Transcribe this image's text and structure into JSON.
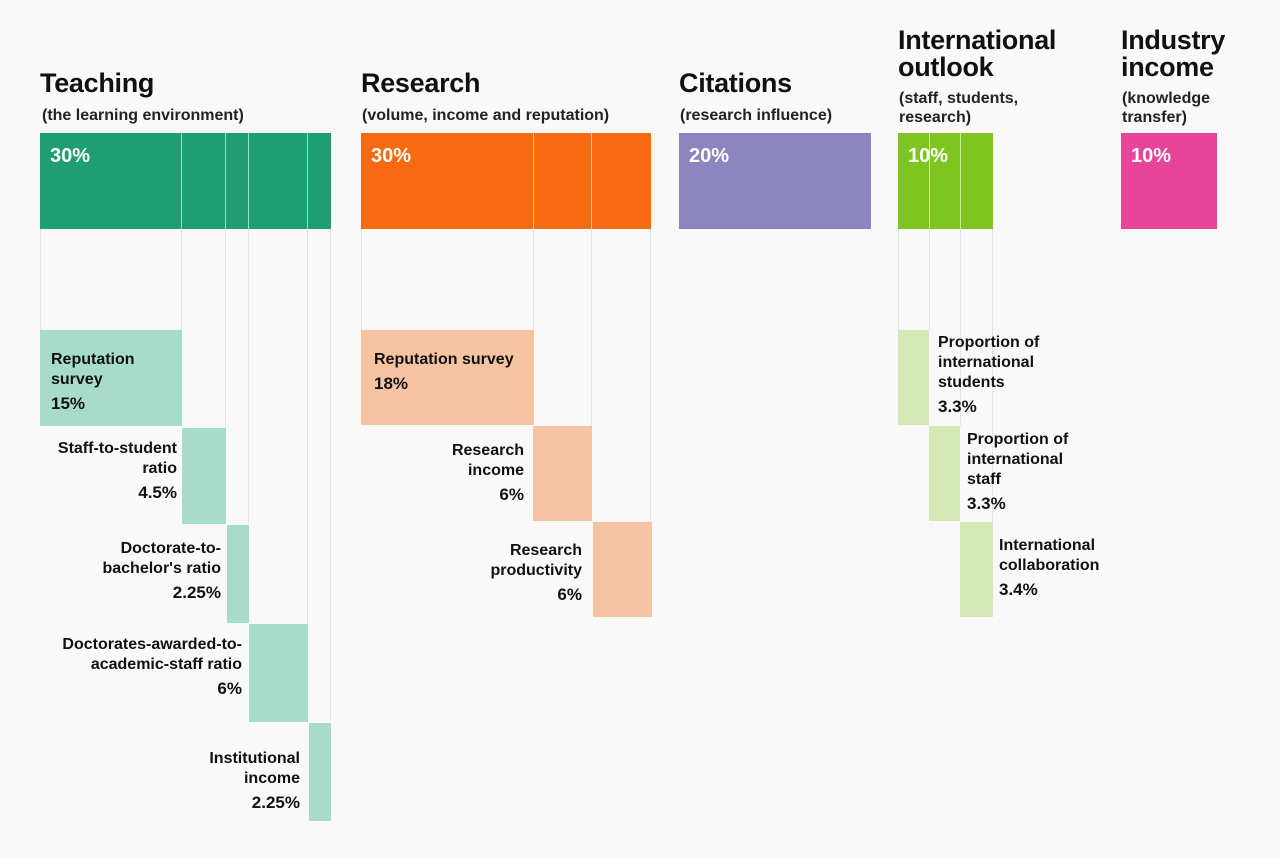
{
  "chart_data": {
    "type": "bar",
    "title": "",
    "unit": "%",
    "pillars": [
      {
        "name": "Teaching",
        "subtitle": "(the learning environment)",
        "weight": 30,
        "weight_label": "30%",
        "color": "#1f9e74",
        "light_color": "#a7dccb",
        "components": [
          {
            "label": "Reputation survey",
            "value": 15,
            "value_label": "15%"
          },
          {
            "label": "Staff-to-student ratio",
            "value": 4.5,
            "value_label": "4.5%"
          },
          {
            "label": "Doctorate-to-bachelor's ratio",
            "value": 2.25,
            "value_label": "2.25%"
          },
          {
            "label": "Doctorates-awarded-to-academic-staff ratio",
            "value": 6,
            "value_label": "6%"
          },
          {
            "label": "Institutional income",
            "value": 2.25,
            "value_label": "2.25%"
          }
        ]
      },
      {
        "name": "Research",
        "subtitle": "(volume, income and reputation)",
        "weight": 30,
        "weight_label": "30%",
        "color": "#f76a12",
        "light_color": "#f6c4a2",
        "components": [
          {
            "label": "Reputation survey",
            "value": 18,
            "value_label": "18%"
          },
          {
            "label": "Research income",
            "value": 6,
            "value_label": "6%"
          },
          {
            "label": "Research productivity",
            "value": 6,
            "value_label": "6%"
          }
        ]
      },
      {
        "name": "Citations",
        "subtitle": "(research influence)",
        "weight": 20,
        "weight_label": "20%",
        "color": "#8c85c0",
        "light_color": "#d6d3ea",
        "components": []
      },
      {
        "name": "International outlook",
        "subtitle": "(staff, students, research)",
        "weight": 10,
        "weight_label": "10%",
        "color": "#7ec61f",
        "light_color": "#d5e8b6",
        "components": [
          {
            "label": "Proportion of international students",
            "value": 3.3,
            "value_label": "3.3%"
          },
          {
            "label": "Proportion of international staff",
            "value": 3.3,
            "value_label": "3.3%"
          },
          {
            "label": "International collaboration",
            "value": 3.4,
            "value_label": "3.4%"
          }
        ]
      },
      {
        "name": "Industry income",
        "subtitle": "(knowledge transfer)",
        "weight": 10,
        "weight_label": "10%",
        "color": "#e8449a",
        "light_color": "#f4b6d6",
        "components": []
      }
    ]
  }
}
